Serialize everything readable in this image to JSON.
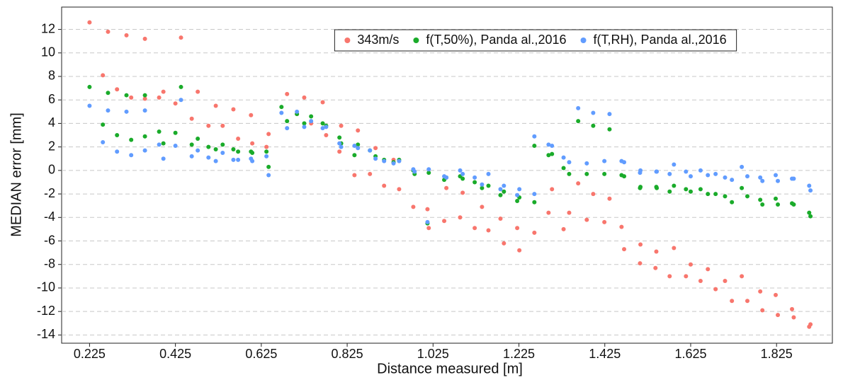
{
  "chart_data": {
    "type": "scatter",
    "xlabel": "Distance measured [m]",
    "ylabel": "MEDIAN error [mm]",
    "xlim": [
      0.16,
      1.955
    ],
    "ylim": [
      -14.7,
      13.9
    ],
    "xticks": [
      0.225,
      0.425,
      0.625,
      0.825,
      1.025,
      1.225,
      1.425,
      1.625,
      1.825
    ],
    "yticks": [
      -14,
      -12,
      -10,
      -8,
      -6,
      -4,
      -2,
      0,
      2,
      4,
      6,
      8,
      10,
      12
    ],
    "grid": true,
    "legend": "upper center",
    "series": [
      {
        "name": "343m/s",
        "color": "#f8766d",
        "x": [
          0.225,
          0.256,
          0.268,
          0.289,
          0.311,
          0.322,
          0.354,
          0.354,
          0.387,
          0.397,
          0.425,
          0.438,
          0.463,
          0.477,
          0.502,
          0.519,
          0.535,
          0.56,
          0.571,
          0.601,
          0.604,
          0.637,
          0.642,
          0.685,
          0.708,
          0.725,
          0.741,
          0.768,
          0.776,
          0.807,
          0.811,
          0.842,
          0.85,
          0.878,
          0.891,
          0.911,
          0.933,
          0.946,
          0.979,
          1.012,
          1.015,
          1.051,
          1.056,
          1.088,
          1.094,
          1.122,
          1.139,
          1.154,
          1.182,
          1.19,
          1.221,
          1.226,
          1.261,
          1.294,
          1.302,
          1.329,
          1.342,
          1.363,
          1.383,
          1.398,
          1.424,
          1.436,
          1.464,
          1.47,
          1.507,
          1.508,
          1.545,
          1.543,
          1.576,
          1.586,
          1.614,
          1.625,
          1.648,
          1.665,
          1.683,
          1.705,
          1.721,
          1.744,
          1.757,
          1.787,
          1.792,
          1.823,
          1.828,
          1.861,
          1.865,
          1.901,
          1.904
        ],
        "values": [
          12.6,
          8.1,
          11.8,
          6.9,
          11.5,
          6.2,
          11.2,
          6.1,
          6.2,
          6.7,
          5.7,
          11.3,
          4.4,
          6.7,
          3.8,
          5.5,
          3.8,
          5.2,
          2.7,
          4.7,
          2.3,
          2.0,
          3.1,
          6.5,
          4.8,
          6.2,
          4.0,
          5.8,
          3.0,
          1.6,
          3.8,
          -0.4,
          3.4,
          -0.3,
          1.9,
          -1.3,
          0.9,
          -1.6,
          -3.1,
          -3.3,
          -4.9,
          -4.3,
          -1.5,
          -4.0,
          -1.9,
          -4.9,
          -3.1,
          -5.1,
          -4.1,
          -6.2,
          -4.9,
          -6.8,
          -5.3,
          -3.6,
          -1.6,
          -5.0,
          -3.6,
          -1.1,
          -4.2,
          -2.0,
          -4.4,
          -2.4,
          -4.8,
          -6.7,
          -7.9,
          -6.3,
          -6.9,
          -8.3,
          -9.0,
          -6.6,
          -9.0,
          -8.0,
          -9.4,
          -8.4,
          -10.1,
          -9.4,
          -11.1,
          -9.0,
          -11.1,
          -10.3,
          -11.9,
          -10.6,
          -12.3,
          -11.8,
          -12.5,
          -13.3,
          -13.1
        ]
      },
      {
        "name": "f(T,50%), Panda al.,2016",
        "color": "#1aab2a",
        "x": [
          0.225,
          0.256,
          0.268,
          0.289,
          0.311,
          0.322,
          0.354,
          0.354,
          0.387,
          0.397,
          0.425,
          0.438,
          0.463,
          0.477,
          0.502,
          0.519,
          0.535,
          0.56,
          0.571,
          0.601,
          0.604,
          0.637,
          0.642,
          0.672,
          0.685,
          0.708,
          0.725,
          0.741,
          0.768,
          0.776,
          0.807,
          0.811,
          0.842,
          0.85,
          0.878,
          0.891,
          0.911,
          0.933,
          0.946,
          0.979,
          0.982,
          1.012,
          1.015,
          1.051,
          1.056,
          1.088,
          1.094,
          1.122,
          1.139,
          1.154,
          1.182,
          1.19,
          1.221,
          1.226,
          1.261,
          1.261,
          1.294,
          1.302,
          1.329,
          1.342,
          1.363,
          1.383,
          1.398,
          1.424,
          1.436,
          1.464,
          1.47,
          1.507,
          1.508,
          1.545,
          1.546,
          1.576,
          1.586,
          1.614,
          1.625,
          1.648,
          1.665,
          1.683,
          1.705,
          1.721,
          1.744,
          1.757,
          1.787,
          1.792,
          1.823,
          1.828,
          1.861,
          1.865,
          1.901,
          1.904
        ],
        "values": [
          7.1,
          3.9,
          6.6,
          3.0,
          6.4,
          2.6,
          6.4,
          2.9,
          3.3,
          2.3,
          3.2,
          7.1,
          2.2,
          2.7,
          2.0,
          1.8,
          2.2,
          1.8,
          1.6,
          1.6,
          1.5,
          1.6,
          0.3,
          5.4,
          4.2,
          4.8,
          4.0,
          4.6,
          4.0,
          3.8,
          2.8,
          2.3,
          1.3,
          2.2,
          1.7,
          1.2,
          0.9,
          0.7,
          0.9,
          0.0,
          -0.3,
          -4.5,
          -0.2,
          -0.8,
          -0.6,
          -0.5,
          -0.7,
          -1.0,
          -1.5,
          -1.3,
          -2.1,
          -1.8,
          -2.6,
          -2.3,
          2.1,
          -2.7,
          1.3,
          1.4,
          0.2,
          -0.3,
          4.2,
          -0.3,
          3.8,
          -0.3,
          3.5,
          -0.4,
          -0.5,
          -1.5,
          -1.4,
          -1.4,
          -1.5,
          -1.8,
          -1.3,
          -1.6,
          -1.8,
          -1.6,
          -2.0,
          -2.0,
          -2.2,
          -2.7,
          -1.5,
          -2.2,
          -2.5,
          -2.9,
          -2.4,
          -2.9,
          -2.8,
          -2.9,
          -3.6,
          -3.9
        ]
      },
      {
        "name": "f(T,RH), Panda al.,2016",
        "color": "#619cff",
        "x": [
          0.225,
          0.256,
          0.268,
          0.289,
          0.311,
          0.322,
          0.354,
          0.354,
          0.387,
          0.397,
          0.425,
          0.438,
          0.463,
          0.477,
          0.502,
          0.519,
          0.535,
          0.56,
          0.571,
          0.601,
          0.604,
          0.637,
          0.642,
          0.672,
          0.685,
          0.708,
          0.725,
          0.741,
          0.768,
          0.776,
          0.807,
          0.811,
          0.842,
          0.85,
          0.878,
          0.891,
          0.911,
          0.933,
          0.946,
          0.979,
          0.982,
          1.012,
          1.015,
          1.051,
          1.056,
          1.088,
          1.094,
          1.122,
          1.139,
          1.154,
          1.182,
          1.19,
          1.221,
          1.226,
          1.261,
          1.261,
          1.294,
          1.302,
          1.329,
          1.342,
          1.363,
          1.383,
          1.398,
          1.424,
          1.436,
          1.464,
          1.47,
          1.507,
          1.508,
          1.545,
          1.546,
          1.576,
          1.586,
          1.614,
          1.625,
          1.648,
          1.665,
          1.683,
          1.705,
          1.721,
          1.744,
          1.757,
          1.787,
          1.792,
          1.823,
          1.828,
          1.861,
          1.865,
          1.901,
          1.904
        ],
        "values": [
          5.5,
          2.4,
          5.1,
          1.6,
          5.0,
          1.3,
          5.1,
          1.7,
          2.2,
          1.0,
          2.1,
          6.0,
          1.2,
          1.7,
          1.1,
          0.8,
          1.5,
          0.9,
          0.9,
          1.0,
          0.8,
          1.2,
          -0.4,
          4.9,
          3.6,
          5.0,
          3.7,
          4.2,
          3.6,
          3.7,
          2.3,
          2.0,
          2.1,
          1.9,
          1.7,
          1.0,
          0.8,
          0.6,
          0.8,
          0.1,
          -0.1,
          -4.4,
          0.1,
          -0.5,
          -0.6,
          0.0,
          -0.3,
          -0.6,
          -1.2,
          -0.3,
          -1.6,
          -1.3,
          -2.1,
          -1.6,
          2.9,
          -2.0,
          2.2,
          2.1,
          1.1,
          0.7,
          5.3,
          0.6,
          4.9,
          0.8,
          4.8,
          0.8,
          0.7,
          -0.2,
          0.0,
          -0.1,
          -0.1,
          -0.3,
          0.5,
          -0.1,
          -0.5,
          0.0,
          -0.4,
          -0.3,
          -0.6,
          -0.8,
          0.3,
          -0.5,
          -0.6,
          -0.9,
          -0.4,
          -0.9,
          -0.7,
          -0.7,
          -1.3,
          -1.7
        ]
      }
    ]
  }
}
